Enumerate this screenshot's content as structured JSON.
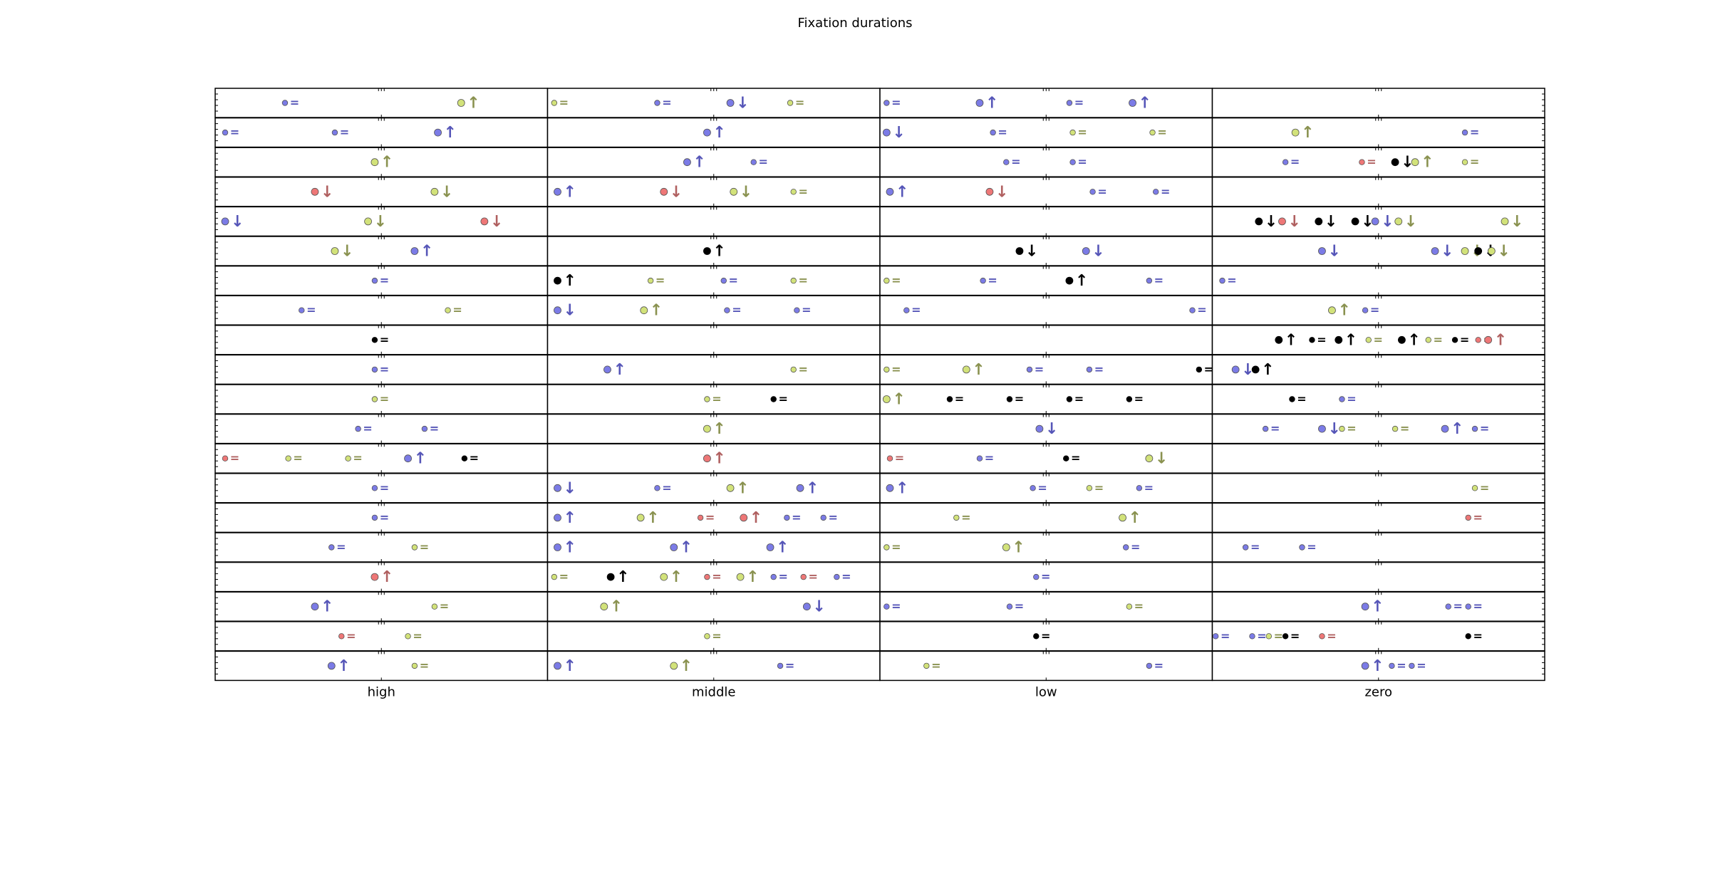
{
  "chart_data": {
    "type": "scatter",
    "title": "Fixation durations",
    "categories": [
      "high",
      "middle",
      "low",
      "zero"
    ],
    "rows": 20,
    "xlim": [
      0,
      4
    ],
    "grid": false,
    "legend": "none",
    "colors": {
      "blue": "#7b7be6",
      "yellow": "#d2e27a",
      "red": "#ee7777",
      "black": "#000000",
      "blue_symbol": "#5656b8",
      "yellow_symbol": "#8a9250",
      "red_symbol": "#b06060",
      "black_symbol": "#000000"
    },
    "marker_legend": {
      "eq": "=",
      "up": "↑",
      "down": "↓"
    },
    "points": [
      [
        [
          0.21,
          "blue",
          "s",
          "eq"
        ],
        [
          0.74,
          "yellow",
          "m",
          "up"
        ],
        [
          1.02,
          "yellow",
          "s",
          "eq"
        ],
        [
          1.33,
          "blue",
          "s",
          "eq"
        ],
        [
          1.55,
          "blue",
          "m",
          "down"
        ],
        [
          1.73,
          "yellow",
          "s",
          "eq"
        ],
        [
          2.02,
          "blue",
          "s",
          "eq"
        ],
        [
          2.3,
          "blue",
          "m",
          "up"
        ],
        [
          2.57,
          "blue",
          "s",
          "eq"
        ],
        [
          2.76,
          "blue",
          "m",
          "up"
        ]
      ],
      [
        [
          0.03,
          "blue",
          "s",
          "eq"
        ],
        [
          0.36,
          "blue",
          "s",
          "eq"
        ],
        [
          0.67,
          "blue",
          "m",
          "up"
        ],
        [
          1.48,
          "blue",
          "m",
          "up"
        ],
        [
          2.02,
          "blue",
          "m",
          "down"
        ],
        [
          2.34,
          "blue",
          "s",
          "eq"
        ],
        [
          2.58,
          "yellow",
          "s",
          "eq"
        ],
        [
          2.82,
          "yellow",
          "s",
          "eq"
        ],
        [
          3.25,
          "yellow",
          "m",
          "up"
        ],
        [
          3.76,
          "blue",
          "s",
          "eq"
        ]
      ],
      [
        [
          0.48,
          "yellow",
          "m",
          "up"
        ],
        [
          1.42,
          "blue",
          "m",
          "up"
        ],
        [
          1.62,
          "blue",
          "s",
          "eq"
        ],
        [
          2.38,
          "blue",
          "s",
          "eq"
        ],
        [
          2.58,
          "blue",
          "s",
          "eq"
        ],
        [
          3.22,
          "blue",
          "s",
          "eq"
        ],
        [
          3.45,
          "red",
          "s",
          "eq"
        ],
        [
          3.55,
          "black",
          "m",
          "down"
        ],
        [
          3.61,
          "yellow",
          "m",
          "up"
        ],
        [
          3.76,
          "yellow",
          "s",
          "eq"
        ]
      ],
      [
        [
          0.3,
          "red",
          "m",
          "down"
        ],
        [
          0.66,
          "yellow",
          "m",
          "down"
        ],
        [
          1.03,
          "blue",
          "m",
          "up"
        ],
        [
          1.35,
          "red",
          "m",
          "down"
        ],
        [
          1.56,
          "yellow",
          "m",
          "down"
        ],
        [
          1.74,
          "yellow",
          "s",
          "eq"
        ],
        [
          2.03,
          "blue",
          "m",
          "up"
        ],
        [
          2.33,
          "red",
          "m",
          "down"
        ],
        [
          2.64,
          "blue",
          "s",
          "eq"
        ],
        [
          2.83,
          "blue",
          "s",
          "eq"
        ]
      ],
      [
        [
          0.03,
          "blue",
          "m",
          "down"
        ],
        [
          0.46,
          "yellow",
          "m",
          "down"
        ],
        [
          0.81,
          "red",
          "m",
          "down"
        ],
        [
          3.14,
          "black",
          "m",
          "down"
        ],
        [
          3.21,
          "red",
          "m",
          "down"
        ],
        [
          3.32,
          "black",
          "m",
          "down"
        ],
        [
          3.43,
          "black",
          "m",
          "down"
        ],
        [
          3.49,
          "blue",
          "m",
          "down"
        ],
        [
          3.56,
          "yellow",
          "m",
          "down"
        ],
        [
          3.88,
          "yellow",
          "m",
          "down"
        ]
      ],
      [
        [
          0.36,
          "yellow",
          "m",
          "down"
        ],
        [
          0.6,
          "blue",
          "m",
          "up"
        ],
        [
          1.48,
          "black",
          "m",
          "up"
        ],
        [
          2.42,
          "black",
          "m",
          "down"
        ],
        [
          2.62,
          "blue",
          "m",
          "down"
        ],
        [
          3.33,
          "blue",
          "m",
          "down"
        ],
        [
          3.67,
          "blue",
          "m",
          "down"
        ],
        [
          3.76,
          "yellow",
          "m",
          "down"
        ],
        [
          3.8,
          "black",
          "m",
          "down"
        ],
        [
          3.84,
          "yellow",
          "m",
          "down"
        ]
      ],
      [
        [
          0.48,
          "blue",
          "s",
          "eq"
        ],
        [
          1.03,
          "black",
          "m",
          "up"
        ],
        [
          1.31,
          "yellow",
          "s",
          "eq"
        ],
        [
          1.53,
          "blue",
          "s",
          "eq"
        ],
        [
          1.74,
          "yellow",
          "s",
          "eq"
        ],
        [
          2.02,
          "yellow",
          "s",
          "eq"
        ],
        [
          2.31,
          "blue",
          "s",
          "eq"
        ],
        [
          2.57,
          "black",
          "m",
          "up"
        ],
        [
          2.81,
          "blue",
          "s",
          "eq"
        ],
        [
          3.03,
          "blue",
          "s",
          "eq"
        ]
      ],
      [
        [
          0.26,
          "blue",
          "s",
          "eq"
        ],
        [
          0.7,
          "yellow",
          "s",
          "eq"
        ],
        [
          1.03,
          "blue",
          "m",
          "down"
        ],
        [
          1.29,
          "yellow",
          "m",
          "up"
        ],
        [
          1.54,
          "blue",
          "s",
          "eq"
        ],
        [
          1.75,
          "blue",
          "s",
          "eq"
        ],
        [
          2.08,
          "blue",
          "s",
          "eq"
        ],
        [
          2.94,
          "blue",
          "s",
          "eq"
        ],
        [
          3.36,
          "yellow",
          "m",
          "up"
        ],
        [
          3.46,
          "blue",
          "s",
          "eq"
        ]
      ],
      [
        [
          0.48,
          "black",
          "s",
          "eq"
        ],
        [
          3.2,
          "black",
          "m",
          "up"
        ],
        [
          3.3,
          "black",
          "s",
          "eq"
        ],
        [
          3.38,
          "black",
          "m",
          "up"
        ],
        [
          3.47,
          "yellow",
          "s",
          "eq"
        ],
        [
          3.57,
          "black",
          "m",
          "up"
        ],
        [
          3.65,
          "yellow",
          "s",
          "eq"
        ],
        [
          3.73,
          "black",
          "s",
          "eq"
        ],
        [
          3.8,
          "red",
          "s",
          "eq"
        ],
        [
          3.83,
          "red",
          "m",
          "up"
        ]
      ],
      [
        [
          0.48,
          "blue",
          "s",
          "eq"
        ],
        [
          1.18,
          "blue",
          "m",
          "up"
        ],
        [
          1.74,
          "yellow",
          "s",
          "eq"
        ],
        [
          2.02,
          "yellow",
          "s",
          "eq"
        ],
        [
          2.26,
          "yellow",
          "m",
          "up"
        ],
        [
          2.45,
          "blue",
          "s",
          "eq"
        ],
        [
          2.63,
          "blue",
          "s",
          "eq"
        ],
        [
          2.96,
          "black",
          "s",
          "eq"
        ],
        [
          3.07,
          "blue",
          "m",
          "down"
        ],
        [
          3.13,
          "black",
          "m",
          "up"
        ]
      ],
      [
        [
          0.48,
          "yellow",
          "s",
          "eq"
        ],
        [
          1.48,
          "yellow",
          "s",
          "eq"
        ],
        [
          1.68,
          "black",
          "s",
          "eq"
        ],
        [
          2.02,
          "yellow",
          "m",
          "up"
        ],
        [
          2.21,
          "black",
          "s",
          "eq"
        ],
        [
          2.39,
          "black",
          "s",
          "eq"
        ],
        [
          2.57,
          "black",
          "s",
          "eq"
        ],
        [
          2.75,
          "black",
          "s",
          "eq"
        ],
        [
          3.24,
          "black",
          "s",
          "eq"
        ],
        [
          3.39,
          "blue",
          "s",
          "eq"
        ]
      ],
      [
        [
          0.43,
          "blue",
          "s",
          "eq"
        ],
        [
          0.63,
          "blue",
          "s",
          "eq"
        ],
        [
          1.48,
          "yellow",
          "m",
          "up"
        ],
        [
          2.48,
          "blue",
          "m",
          "down"
        ],
        [
          3.16,
          "blue",
          "s",
          "eq"
        ],
        [
          3.33,
          "blue",
          "m",
          "down"
        ],
        [
          3.39,
          "yellow",
          "s",
          "eq"
        ],
        [
          3.55,
          "yellow",
          "s",
          "eq"
        ],
        [
          3.7,
          "blue",
          "m",
          "up"
        ],
        [
          3.79,
          "blue",
          "s",
          "eq"
        ]
      ],
      [
        [
          0.03,
          "red",
          "s",
          "eq"
        ],
        [
          0.22,
          "yellow",
          "s",
          "eq"
        ],
        [
          0.4,
          "yellow",
          "s",
          "eq"
        ],
        [
          0.58,
          "blue",
          "m",
          "up"
        ],
        [
          0.75,
          "black",
          "s",
          "eq"
        ],
        [
          1.48,
          "red",
          "m",
          "up"
        ],
        [
          2.03,
          "red",
          "s",
          "eq"
        ],
        [
          2.3,
          "blue",
          "s",
          "eq"
        ],
        [
          2.56,
          "black",
          "s",
          "eq"
        ],
        [
          2.81,
          "yellow",
          "m",
          "down"
        ]
      ],
      [
        [
          0.48,
          "blue",
          "s",
          "eq"
        ],
        [
          1.03,
          "blue",
          "m",
          "down"
        ],
        [
          1.33,
          "blue",
          "s",
          "eq"
        ],
        [
          1.55,
          "yellow",
          "m",
          "up"
        ],
        [
          1.76,
          "blue",
          "m",
          "up"
        ],
        [
          2.03,
          "blue",
          "m",
          "up"
        ],
        [
          2.46,
          "blue",
          "s",
          "eq"
        ],
        [
          2.63,
          "yellow",
          "s",
          "eq"
        ],
        [
          2.78,
          "blue",
          "s",
          "eq"
        ],
        [
          3.79,
          "yellow",
          "s",
          "eq"
        ]
      ],
      [
        [
          0.48,
          "blue",
          "s",
          "eq"
        ],
        [
          1.03,
          "blue",
          "m",
          "up"
        ],
        [
          1.28,
          "yellow",
          "m",
          "up"
        ],
        [
          1.46,
          "red",
          "s",
          "eq"
        ],
        [
          1.59,
          "red",
          "m",
          "up"
        ],
        [
          1.72,
          "blue",
          "s",
          "eq"
        ],
        [
          1.83,
          "blue",
          "s",
          "eq"
        ],
        [
          2.23,
          "yellow",
          "s",
          "eq"
        ],
        [
          2.73,
          "yellow",
          "m",
          "up"
        ],
        [
          3.77,
          "red",
          "s",
          "eq"
        ]
      ],
      [
        [
          0.35,
          "blue",
          "s",
          "eq"
        ],
        [
          0.6,
          "yellow",
          "s",
          "eq"
        ],
        [
          1.03,
          "blue",
          "m",
          "up"
        ],
        [
          1.38,
          "blue",
          "m",
          "up"
        ],
        [
          1.67,
          "blue",
          "m",
          "up"
        ],
        [
          2.02,
          "yellow",
          "s",
          "eq"
        ],
        [
          2.38,
          "yellow",
          "m",
          "up"
        ],
        [
          2.74,
          "blue",
          "s",
          "eq"
        ],
        [
          3.1,
          "blue",
          "s",
          "eq"
        ],
        [
          3.27,
          "blue",
          "s",
          "eq"
        ]
      ],
      [
        [
          0.48,
          "red",
          "m",
          "up"
        ],
        [
          1.02,
          "yellow",
          "s",
          "eq"
        ],
        [
          1.19,
          "black",
          "m",
          "up"
        ],
        [
          1.35,
          "yellow",
          "m",
          "up"
        ],
        [
          1.48,
          "red",
          "s",
          "eq"
        ],
        [
          1.58,
          "yellow",
          "m",
          "up"
        ],
        [
          1.68,
          "blue",
          "s",
          "eq"
        ],
        [
          1.77,
          "red",
          "s",
          "eq"
        ],
        [
          1.87,
          "blue",
          "s",
          "eq"
        ],
        [
          2.47,
          "blue",
          "s",
          "eq"
        ]
      ],
      [
        [
          0.3,
          "blue",
          "m",
          "up"
        ],
        [
          0.66,
          "yellow",
          "s",
          "eq"
        ],
        [
          1.17,
          "yellow",
          "m",
          "up"
        ],
        [
          1.78,
          "blue",
          "m",
          "down"
        ],
        [
          2.02,
          "blue",
          "s",
          "eq"
        ],
        [
          2.39,
          "blue",
          "s",
          "eq"
        ],
        [
          2.75,
          "yellow",
          "s",
          "eq"
        ],
        [
          3.46,
          "blue",
          "m",
          "up"
        ],
        [
          3.71,
          "blue",
          "s",
          "eq"
        ],
        [
          3.77,
          "blue",
          "s",
          "eq"
        ]
      ],
      [
        [
          0.38,
          "red",
          "s",
          "eq"
        ],
        [
          0.58,
          "yellow",
          "s",
          "eq"
        ],
        [
          1.48,
          "yellow",
          "s",
          "eq"
        ],
        [
          2.47,
          "black",
          "s",
          "eq"
        ],
        [
          3.01,
          "blue",
          "s",
          "eq"
        ],
        [
          3.12,
          "blue",
          "s",
          "eq"
        ],
        [
          3.17,
          "yellow",
          "s",
          "eq"
        ],
        [
          3.22,
          "black",
          "s",
          "eq"
        ],
        [
          3.33,
          "red",
          "s",
          "eq"
        ],
        [
          3.77,
          "black",
          "s",
          "eq"
        ]
      ],
      [
        [
          0.35,
          "blue",
          "m",
          "up"
        ],
        [
          0.6,
          "yellow",
          "s",
          "eq"
        ],
        [
          1.03,
          "blue",
          "m",
          "up"
        ],
        [
          1.38,
          "yellow",
          "m",
          "up"
        ],
        [
          1.7,
          "blue",
          "s",
          "eq"
        ],
        [
          2.14,
          "yellow",
          "s",
          "eq"
        ],
        [
          2.81,
          "blue",
          "s",
          "eq"
        ],
        [
          3.46,
          "blue",
          "m",
          "up"
        ],
        [
          3.54,
          "blue",
          "s",
          "eq"
        ],
        [
          3.6,
          "blue",
          "s",
          "eq"
        ]
      ]
    ]
  }
}
